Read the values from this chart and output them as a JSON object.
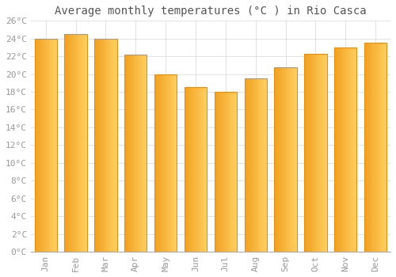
{
  "months": [
    "Jan",
    "Feb",
    "Mar",
    "Apr",
    "May",
    "Jun",
    "Jul",
    "Aug",
    "Sep",
    "Oct",
    "Nov",
    "Dec"
  ],
  "values": [
    24.0,
    24.5,
    24.0,
    22.2,
    20.0,
    18.5,
    18.0,
    19.5,
    20.8,
    22.3,
    23.0,
    23.5
  ],
  "bar_color_left": "#F0A020",
  "bar_color_right": "#FFD060",
  "bar_edge_color": "#E89010",
  "title": "Average monthly temperatures (°C ) in Rio Casca",
  "ylim": [
    0,
    26
  ],
  "yticks": [
    0,
    2,
    4,
    6,
    8,
    10,
    12,
    14,
    16,
    18,
    20,
    22,
    24,
    26
  ],
  "ytick_labels": [
    "0°C",
    "2°C",
    "4°C",
    "6°C",
    "8°C",
    "10°C",
    "12°C",
    "14°C",
    "16°C",
    "18°C",
    "20°C",
    "22°C",
    "24°C",
    "26°C"
  ],
  "background_color": "#FFFFFF",
  "grid_color": "#DDDDDD",
  "title_fontsize": 10,
  "tick_fontsize": 8,
  "font_family": "monospace",
  "tick_color": "#999999"
}
